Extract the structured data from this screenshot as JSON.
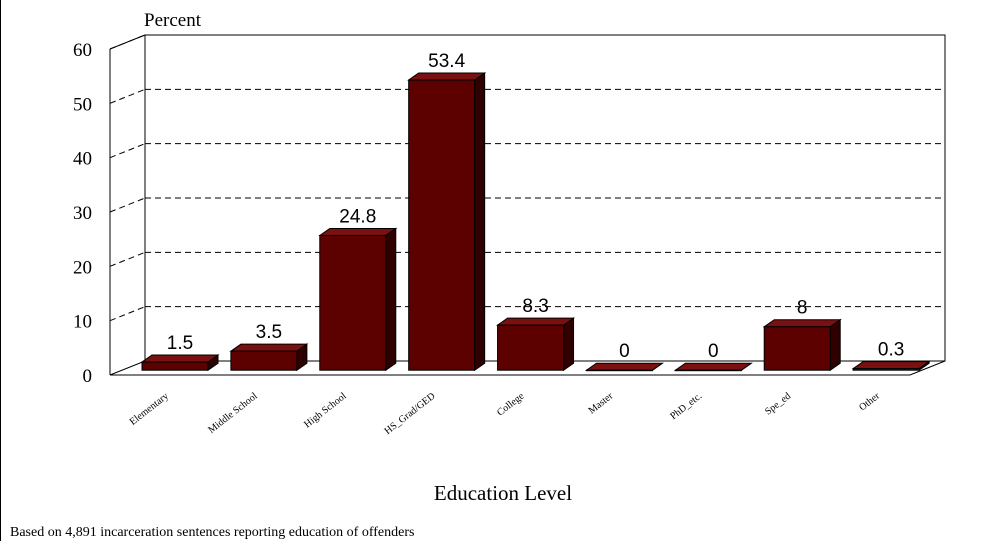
{
  "chart_data": {
    "type": "bar",
    "categories": [
      "Elementary",
      "Middle School",
      "High School",
      "HS_Grad/GED",
      "College",
      "Master",
      "PhD_etc.",
      "Spe_ed",
      "Other"
    ],
    "values": [
      1.5,
      3.5,
      24.8,
      53.4,
      8.3,
      0,
      0,
      8,
      0.3
    ],
    "value_labels": [
      "1.5",
      "3.5",
      "24.8",
      "53.4",
      "8.3",
      "0",
      "0",
      "8",
      "0.3"
    ],
    "title": "",
    "ylabel": "Percent",
    "xlabel": "Education Level",
    "y_ticks": [
      "0",
      "10",
      "20",
      "30",
      "40",
      "50",
      "60"
    ],
    "ylim": [
      0,
      60
    ],
    "grid": true,
    "bar_color": "#5c0000",
    "footnote": "Based on 4,891 incarceration sentences reporting education of offenders"
  }
}
